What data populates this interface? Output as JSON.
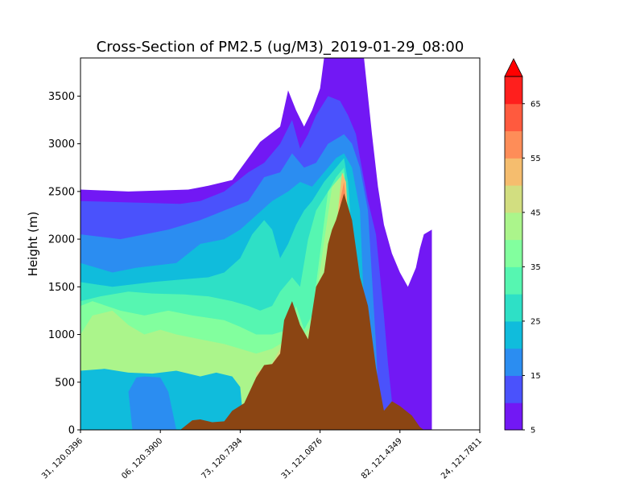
{
  "chart_data": {
    "type": "area",
    "title": "Cross-Section of PM2.5 (ug/M3)_2019-01-29_08:00",
    "xlabel": "",
    "ylabel": "Height (m)",
    "ylim": [
      0,
      3900
    ],
    "y_ticks": [
      0,
      500,
      1000,
      1500,
      2000,
      2500,
      3000,
      3500
    ],
    "x_ticks": [
      "31, 120.0396",
      "06, 120.3900",
      "73, 120.7394",
      "31, 121.0876",
      "82, 121.4349",
      "24, 121.7811"
    ],
    "colorbar": {
      "levels": [
        5,
        10,
        15,
        20,
        25,
        30,
        35,
        40,
        45,
        50,
        55,
        60,
        65,
        70
      ],
      "tick_labels": [
        5,
        15,
        25,
        35,
        45,
        55,
        65
      ],
      "colors": [
        "#7218f4",
        "#4a52fc",
        "#2b8df1",
        "#10bcdc",
        "#2ee0c6",
        "#56f6b1",
        "#82ff9e",
        "#abf58b",
        "#d2de80",
        "#f5bd6e",
        "#fe8d58",
        "#ff5a3e",
        "#ff1f1d"
      ],
      "extend_color": "#ff0000"
    },
    "terrain": {
      "color": "#8b4513",
      "x_fraction": [
        0.2,
        0.25,
        0.28,
        0.3,
        0.33,
        0.36,
        0.38,
        0.41,
        0.44,
        0.46,
        0.48,
        0.5,
        0.51,
        0.53,
        0.55,
        0.57,
        0.59,
        0.61,
        0.62,
        0.63,
        0.64,
        0.66,
        0.68,
        0.7,
        0.72,
        0.74,
        0.76,
        0.78,
        0.8,
        0.83,
        0.85,
        0.86,
        0.87
      ],
      "height": [
        0,
        0,
        100,
        110,
        80,
        90,
        200,
        280,
        550,
        680,
        690,
        800,
        1150,
        1350,
        1100,
        950,
        1500,
        1650,
        1950,
        2100,
        2200,
        2480,
        2200,
        1600,
        1300,
        650,
        200,
        300,
        250,
        150,
        30,
        0,
        0
      ]
    }
  }
}
